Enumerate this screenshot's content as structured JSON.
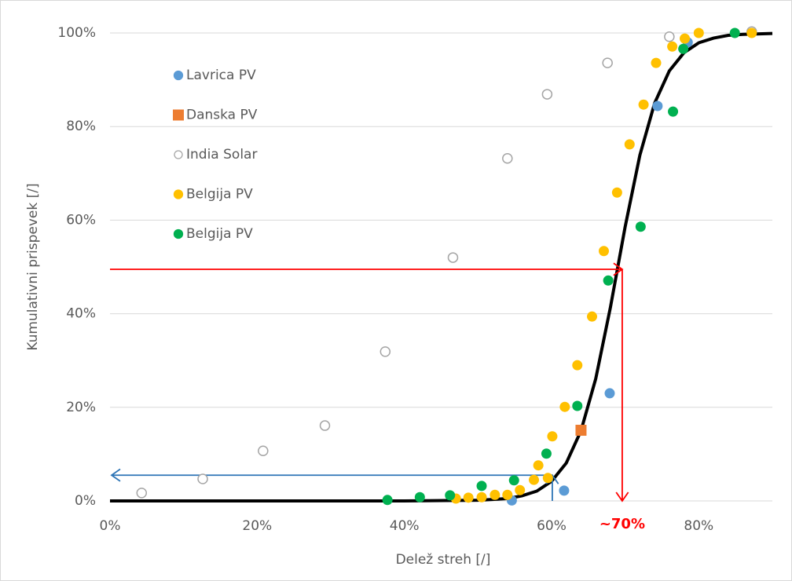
{
  "chart_data": {
    "type": "scatter",
    "x_label": "Delež streh [/]",
    "y_label": "Kumulativni prispevek [/]",
    "xlim": [
      0,
      90
    ],
    "ylim": [
      0,
      100
    ],
    "xticks": [
      {
        "value": 0,
        "label": "0%"
      },
      {
        "value": 20,
        "label": "20%"
      },
      {
        "value": 40,
        "label": "40%"
      },
      {
        "value": 60,
        "label": "60%"
      },
      {
        "value": 80,
        "label": "80%"
      }
    ],
    "yticks": [
      {
        "value": 0,
        "label": "0%"
      },
      {
        "value": 20,
        "label": "20%"
      },
      {
        "value": 40,
        "label": "40%"
      },
      {
        "value": 60,
        "label": "60%"
      },
      {
        "value": 80,
        "label": "80%"
      },
      {
        "value": 100,
        "label": "100%"
      }
    ],
    "grid": true,
    "legend": "upper left",
    "series": [
      {
        "name": "Lavrica PV",
        "color": "#5b9bd5",
        "marker": "circle",
        "x": [
          54.6,
          61.7,
          67.9,
          74.4,
          78.5,
          87.2
        ],
        "values": [
          0.1,
          2.2,
          23,
          84.4,
          98,
          100.3
        ]
      },
      {
        "name": "Danska PV",
        "color": "#ed7d31",
        "marker": "square",
        "x": [
          64
        ],
        "values": [
          15.1
        ]
      },
      {
        "name": "India Solar",
        "color": "#a5a5a5",
        "marker": "open-circle",
        "x": [
          4.3,
          12.6,
          20.8,
          29.2,
          37.4,
          46.6,
          54,
          59.4,
          67.6,
          76,
          87.2
        ],
        "values": [
          1.7,
          4.7,
          10.7,
          16.1,
          31.9,
          52,
          73.2,
          86.9,
          93.6,
          99.2,
          100.3
        ]
      },
      {
        "name": "Belgija PV",
        "color": "#ffc000",
        "marker": "circle",
        "x": [
          47,
          48.7,
          50.5,
          52.3,
          54,
          55.7,
          57.6,
          59.5,
          58.2,
          60.1,
          61.8,
          63.5,
          65.5,
          67.1,
          68.9,
          70.6,
          72.5,
          74.2,
          76.4,
          78.1,
          80,
          87.2
        ],
        "values": [
          0.5,
          0.7,
          0.8,
          1.3,
          1.3,
          2.3,
          4.5,
          4.9,
          7.6,
          13.8,
          20.1,
          29,
          39.4,
          53.4,
          65.9,
          76.2,
          84.7,
          93.6,
          97.1,
          98.8,
          100,
          100
        ]
      },
      {
        "name": "Belgija PV",
        "color": "#00b050",
        "marker": "circle",
        "x": [
          37.7,
          42.1,
          46.2,
          50.5,
          54.9,
          59.3,
          63.5,
          67.7,
          72.1,
          76.5,
          77.9,
          84.9
        ],
        "values": [
          0.2,
          0.8,
          1.2,
          3.2,
          4.4,
          10.1,
          20.3,
          47.1,
          58.6,
          83.2,
          96.6,
          100
        ]
      }
    ],
    "fit": {
      "color": "#000000",
      "x": [
        0,
        20,
        40,
        50,
        54,
        56,
        58,
        60,
        62,
        64,
        66,
        68,
        70,
        72,
        74,
        76,
        78,
        80,
        82,
        84,
        86,
        90
      ],
      "values": [
        0,
        0,
        0,
        0.14,
        0.5,
        1.1,
        2.1,
        4.2,
        8.1,
        15,
        26.1,
        41.4,
        58.6,
        73.9,
        85,
        91.9,
        95.8,
        97.9,
        98.9,
        99.5,
        99.7,
        99.9
      ]
    },
    "arrows": [
      {
        "color": "#ff0000",
        "x": 69.6,
        "y": 49.5,
        "from": "y"
      },
      {
        "color": "#2e75b6",
        "x": 60.1,
        "y": 5.5,
        "from": "x"
      }
    ],
    "annotation": {
      "text": "~70%",
      "x": 69.6,
      "color": "#ff0000"
    }
  }
}
